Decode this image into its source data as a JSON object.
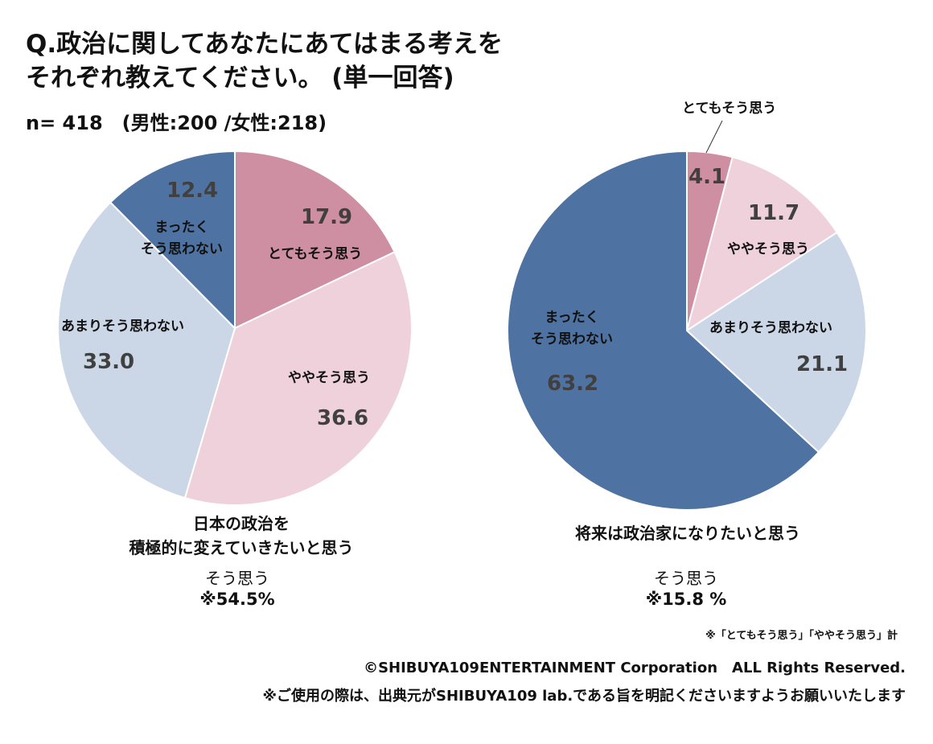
{
  "title_line1": "Q.政治に関してあなたにあてはまる考えを",
  "title_line2": "それぞれ教えてください。 (単一回答)",
  "sample": "n= 418　(男性:200 /女性:218)",
  "colors": {
    "very": "#cf8fa3",
    "somewhat": "#eed1da",
    "notmuch": "#cbd7e7",
    "notatall": "#4e73a2"
  },
  "chart_data": [
    {
      "type": "pie",
      "title": "日本の政治を 積極的に変えていきたいと思う",
      "title_line1": "日本の政治を",
      "title_line2": "積極的に変えていきたいと思う",
      "categories": [
        "とてもそう思う",
        "ややそう思う",
        "あまりそう思わない",
        "まったくそう思わない"
      ],
      "labels": [
        "とてもそう思う",
        "ややそう思う",
        "あまりそう思わない",
        "まったく",
        "そう思わない"
      ],
      "values": [
        17.9,
        36.6,
        33.0,
        12.4
      ],
      "value_labels": [
        "17.9",
        "36.6",
        "33.0",
        "12.4"
      ],
      "summary_label": "そう思う",
      "summary_value": "※54.5%"
    },
    {
      "type": "pie",
      "title": "将来は政治家になりたいと思う",
      "categories": [
        "とてもそう思う",
        "ややそう思う",
        "あまりそう思わない",
        "まったくそう思わない"
      ],
      "labels": [
        "とてもそう思う",
        "ややそう思う",
        "あまりそう思わない",
        "まったく",
        "そう思わない"
      ],
      "values": [
        4.1,
        11.7,
        21.1,
        63.2
      ],
      "value_labels": [
        "4.1",
        "11.7",
        "21.1",
        "63.2"
      ],
      "summary_label": "そう思う",
      "summary_value": "※15.8 %"
    }
  ],
  "note": "※「とてもそう思う」「ややそう思う」計",
  "copyright": "©SHIBUYA109ENTERTAINMENT Corporation　ALL Rights Reserved.",
  "usage": "※ご使用の際は、出典元がSHIBUYA109 lab.である旨を明記くださいますようお願いいたします"
}
